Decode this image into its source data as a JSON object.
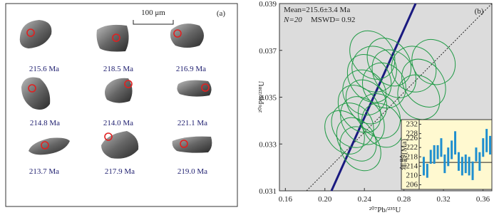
{
  "panel_a": {
    "label": "(a)",
    "scale_bar": "100 μm",
    "grains": [
      {
        "age": "215.6 Ma"
      },
      {
        "age": "218.5 Ma"
      },
      {
        "age": "216.9 Ma"
      },
      {
        "age": "214.8 Ma"
      },
      {
        "age": "214.0 Ma"
      },
      {
        "age": "221.1 Ma"
      },
      {
        "age": "213.7 Ma"
      },
      {
        "age": "217.9 Ma"
      },
      {
        "age": "219.0 Ma"
      }
    ]
  },
  "chart_data": [
    {
      "type": "ellipse",
      "label": "(b)",
      "annotations": [
        "Mean=215.6±3.4 Ma",
        "N=20",
        "MSWD= 0.92"
      ],
      "x_label": "²⁰⁷Pb/²³⁵U",
      "y_label": "²⁰⁶Pb/²³⁸U",
      "xlim": [
        0.154,
        0.369
      ],
      "ylim": [
        0.031,
        0.039
      ],
      "xticks": [
        0.16,
        {
          "value": 0.2,
          "label": "0.20"
        },
        0.24,
        0.28,
        0.32,
        0.36
      ],
      "yticks": [
        0.031,
        0.033,
        0.035,
        0.037,
        0.039
      ],
      "series": [
        {
          "color": "#1f9a45",
          "x": [
            0.228,
            0.235,
            0.24,
            0.245,
            0.25,
            0.232,
            0.238,
            0.26,
            0.265,
            0.242,
            0.255,
            0.22,
            0.248,
            0.236,
            0.27,
            0.29,
            0.3,
            0.31,
            0.295,
            0.258
          ],
          "y": [
            0.0338,
            0.0345,
            0.0352,
            0.0358,
            0.0362,
            0.0332,
            0.034,
            0.0355,
            0.0365,
            0.0348,
            0.0342,
            0.0335,
            0.0368,
            0.0328,
            0.036,
            0.0362,
            0.0356,
            0.0365,
            0.035,
            0.0338
          ],
          "x_err": [
            0.02,
            0.019,
            0.021,
            0.02,
            0.022,
            0.018,
            0.02,
            0.021,
            0.02,
            0.019,
            0.02,
            0.018,
            0.021,
            0.019,
            0.02,
            0.022,
            0.02,
            0.021,
            0.02,
            0.019
          ],
          "y_err": [
            0.001,
            0.0011,
            0.001,
            0.0011,
            0.001,
            0.001,
            0.0011,
            0.001,
            0.0011,
            0.001,
            0.001,
            0.001,
            0.0011,
            0.001,
            0.0011,
            0.001,
            0.0011,
            0.001,
            0.001,
            0.001
          ]
        }
      ]
    },
    {
      "type": "errorbar",
      "y_label": "年龄(Ma)",
      "ylim": [
        204,
        234
      ],
      "yticks": [
        206,
        210,
        214,
        218,
        222,
        226,
        228,
        232
      ],
      "mean": 215.6,
      "color": "#1f8fcf",
      "values": [
        214,
        212,
        218,
        219,
        220,
        222,
        215,
        218,
        221,
        224,
        216,
        214,
        215,
        214,
        212,
        219,
        216,
        222,
        225,
        223
      ],
      "errors": [
        4,
        3,
        3,
        4,
        3,
        4,
        4,
        4,
        4,
        5,
        4,
        4,
        4,
        4,
        4,
        3,
        4,
        4,
        5,
        4
      ]
    }
  ]
}
